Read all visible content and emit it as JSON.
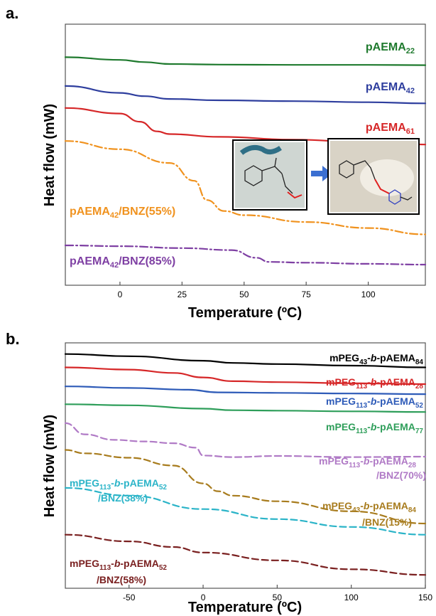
{
  "chart_data": [
    {
      "panel": "a.",
      "type": "line",
      "xlabel": "Temperature (ºC)",
      "ylabel": "Heat flow (mW)",
      "xlim": [
        -22,
        123
      ],
      "xticks": [
        0,
        25,
        50,
        75,
        100
      ],
      "yticks_visible": false,
      "grid": false,
      "series": [
        {
          "name": "pAEMA22",
          "label_main": "pAEMA",
          "label_sub": "22",
          "color": "#1f7a2e",
          "dash": "solid",
          "x": [
            -22,
            0,
            10,
            20,
            40,
            70,
            100,
            123
          ],
          "y": [
            83.0,
            82.0,
            81.2,
            80.5,
            80.3,
            80.2,
            80.2,
            80.1
          ]
        },
        {
          "name": "pAEMA42",
          "label_main": "pAEMA",
          "label_sub": "42",
          "color": "#2e3e9e",
          "dash": "solid",
          "x": [
            -22,
            0,
            10,
            20,
            40,
            70,
            100,
            123
          ],
          "y": [
            72.5,
            70.0,
            68.8,
            67.8,
            67.3,
            67.0,
            66.6,
            66.2
          ]
        },
        {
          "name": "pAEMA61",
          "label_main": "pAEMA",
          "label_sub": "61",
          "color": "#d62728",
          "dash": "solid",
          "x": [
            -22,
            0,
            8,
            15,
            20,
            40,
            70,
            100,
            123
          ],
          "y": [
            64.5,
            62.5,
            59.5,
            56.0,
            55.0,
            54.0,
            53.0,
            52.0,
            51.2
          ]
        },
        {
          "name": "pAEMA42/BNZ(55%)",
          "label_main": "pAEMA",
          "label_sub": "42",
          "label_tail": "/BNZ(55%)",
          "color": "#f0921e",
          "dash": "dashdot",
          "x": [
            -22,
            0,
            20,
            30,
            35,
            42,
            50,
            75,
            100,
            123
          ],
          "y": [
            52.5,
            49.5,
            44.5,
            38.0,
            31.0,
            27.0,
            25.5,
            23.0,
            20.8,
            18.5
          ]
        },
        {
          "name": "pAEMA42/BNZ(85%)",
          "label_main": "pAEMA",
          "label_sub": "42",
          "label_tail": "/BNZ(85%)",
          "color": "#7e3fa3",
          "dash": "dashdot",
          "x": [
            -22,
            0,
            25,
            45,
            55,
            60,
            75,
            100,
            123
          ],
          "y": [
            14.5,
            14.2,
            13.5,
            12.8,
            10.0,
            8.5,
            8.2,
            7.8,
            7.5
          ]
        }
      ]
    },
    {
      "panel": "b.",
      "type": "line",
      "xlabel": "Temperature (ºC)",
      "ylabel": "Heat flow (mW)",
      "xlim": [
        -93,
        150
      ],
      "xticks": [
        -50,
        0,
        50,
        100,
        150
      ],
      "yticks_visible": false,
      "grid": false,
      "series": [
        {
          "name": "mPEG43-b-pAEMA84",
          "label_parts": [
            "mPEG",
            "43",
            "-",
            "b",
            "-pAEMA",
            "84"
          ],
          "color": "#000000",
          "dash": "solid",
          "x": [
            -93,
            -50,
            0,
            20,
            50,
            100,
            150
          ],
          "y": [
            95.0,
            94.0,
            92.0,
            91.0,
            90.5,
            89.8,
            89.0
          ]
        },
        {
          "name": "mPEG113-b-pAEMA28",
          "label_parts": [
            "mPEG",
            "113",
            "-",
            "b",
            "-pAEMA",
            "28"
          ],
          "color": "#d62728",
          "dash": "solid",
          "x": [
            -93,
            -50,
            -20,
            0,
            20,
            50,
            100,
            150
          ],
          "y": [
            89.0,
            88.0,
            86.5,
            84.5,
            82.8,
            82.4,
            81.9,
            81.5
          ]
        },
        {
          "name": "mPEG113-b-pAEMA52",
          "label_parts": [
            "mPEG",
            "113",
            "-",
            "b",
            "-pAEMA",
            "52"
          ],
          "color": "#2e5bb8",
          "dash": "solid",
          "x": [
            -93,
            -50,
            -10,
            10,
            50,
            100,
            150
          ],
          "y": [
            80.5,
            79.8,
            79.0,
            77.8,
            77.6,
            77.3,
            77.0
          ]
        },
        {
          "name": "mPEG113-b-pAEMA77",
          "label_parts": [
            "mPEG",
            "113",
            "-",
            "b",
            "-pAEMA",
            "77"
          ],
          "color": "#2e9e5a",
          "dash": "solid",
          "x": [
            -93,
            -50,
            0,
            20,
            50,
            100,
            150
          ],
          "y": [
            72.5,
            72.0,
            70.5,
            69.8,
            69.6,
            69.3,
            69.0
          ]
        },
        {
          "name": "mPEG113-b-pAEMA28/BNZ(70%)",
          "label_parts": [
            "mPEG",
            "113",
            "-",
            "b",
            "-pAEMA",
            "28"
          ],
          "label_line2": "/BNZ(70%)",
          "color": "#b07ac6",
          "dash": "dashed",
          "x": [
            -93,
            -80,
            -60,
            -40,
            -20,
            -5,
            0,
            20,
            50,
            100,
            150
          ],
          "y": [
            64.0,
            59.0,
            56.5,
            55.8,
            55.0,
            53.0,
            49.5,
            48.8,
            49.3,
            48.8,
            49.0
          ]
        },
        {
          "name": "mPEG43-b-pAEMA84/BNZ(15%)",
          "label_parts": [
            "mPEG",
            "43",
            "-",
            "b",
            "-pAEMA",
            "84"
          ],
          "label_line2": "/BNZ(15%)",
          "color": "#a87c1e",
          "dash": "dashed",
          "x": [
            -93,
            -80,
            -50,
            -20,
            0,
            10,
            20,
            50,
            100,
            150
          ],
          "y": [
            52.0,
            50.5,
            48.5,
            45.0,
            37.0,
            33.5,
            31.5,
            29.0,
            24.5,
            19.0
          ]
        },
        {
          "name": "mPEG113-b-pAEMA52/BNZ(38%)",
          "label_parts": [
            "mPEG",
            "113",
            "-",
            "b",
            "-pAEMA",
            "52"
          ],
          "label_line2": "/BNZ(38%)",
          "color": "#2bb4c8",
          "dash": "dashed",
          "x": [
            -93,
            -50,
            0,
            50,
            100,
            150
          ],
          "y": [
            35.0,
            31.5,
            25.5,
            21.0,
            17.5,
            14.0
          ]
        },
        {
          "name": "mPEG113-b-pAEMA52/BNZ(58%)",
          "label_parts": [
            "mPEG",
            "113",
            "-",
            "b",
            "-pAEMA",
            "52"
          ],
          "label_line2": "/BNZ(58%)",
          "color": "#7a2020",
          "dash": "dashed",
          "x": [
            -93,
            -50,
            -20,
            0,
            50,
            100,
            150
          ],
          "y": [
            14.0,
            11.0,
            8.5,
            6.0,
            2.5,
            -1.5,
            -4.0
          ]
        }
      ]
    }
  ]
}
